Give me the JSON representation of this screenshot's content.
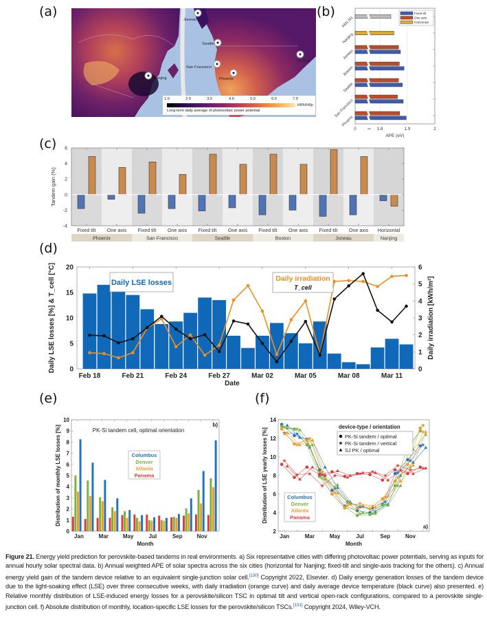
{
  "panels": {
    "a": "(a)",
    "b": "(b)",
    "c": "(c)",
    "d": "(d)",
    "e": "(e)",
    "f": "(f)"
  },
  "map": {
    "cities": [
      {
        "name": "Juneau",
        "region": "north-america"
      },
      {
        "name": "Seattle",
        "region": "north-america"
      },
      {
        "name": "San Francisco",
        "region": "north-america"
      },
      {
        "name": "Phoenix",
        "region": "north-america"
      },
      {
        "name": "Boston",
        "region": "north-america"
      },
      {
        "name": "Nanjing",
        "region": "asia"
      }
    ],
    "colorbar": {
      "ticks": [
        "1.0",
        "2.0",
        "3.0",
        "4.0",
        "5.0",
        "6.0",
        "7.0"
      ],
      "unit": "kWh/kWp",
      "description": "Long-term daily average of photovoltaic power potential",
      "colors": [
        "#000004",
        "#2a0f5c",
        "#5c1a6e",
        "#8c2369",
        "#c53c55",
        "#ec6a3d",
        "#f9a64a",
        "#fce8a8"
      ]
    }
  },
  "chart_data": [
    {
      "id": "b",
      "type": "bar",
      "orientation": "horizontal",
      "title": "",
      "xlabel": "APE (eV)",
      "ylabel": "",
      "xticks": [
        "0",
        "1.8",
        "1.9",
        "2"
      ],
      "axis_break": true,
      "xlim_broken": [
        1.76,
        2.0
      ],
      "categories": [
        "AM1.5G",
        "Nanjing",
        "Juneau",
        "Boston",
        "Seattle",
        "San Francisco",
        "Phoenix"
      ],
      "series": [
        {
          "name": "Fixed tilt",
          "color": "#3b5bb5",
          "values": [
            null,
            null,
            1.875,
            1.888,
            1.882,
            1.885,
            1.896
          ]
        },
        {
          "name": "One axis",
          "color": "#c04a26",
          "values": [
            null,
            null,
            1.868,
            1.871,
            1.868,
            1.864,
            1.872
          ]
        },
        {
          "name": "Horizontal",
          "color": "#d9aa35",
          "values": [
            null,
            1.851,
            null,
            null,
            null,
            null,
            null
          ]
        },
        {
          "name": "AM1.5G",
          "color": "#bdbdbd",
          "values": [
            1.84,
            null,
            null,
            null,
            null,
            null,
            null
          ]
        }
      ],
      "legend": [
        "Fixed tilt",
        "One axis",
        "Horizontal"
      ],
      "legend_position": "top-right"
    },
    {
      "id": "c",
      "type": "bar",
      "title": "",
      "ylabel": "Tandem gain (%)",
      "ylim": [
        -4,
        6
      ],
      "yticks": [
        -4,
        -2,
        0,
        2,
        4,
        6
      ],
      "groups": [
        {
          "city": "Phoenix",
          "orientations": [
            "Fixed tilt",
            "One axis"
          ]
        },
        {
          "city": "San Francisco",
          "orientations": [
            "Fixed tilt",
            "One axis"
          ]
        },
        {
          "city": "Seattle",
          "orientations": [
            "Fixed tilt",
            "One axis"
          ]
        },
        {
          "city": "Boston",
          "orientations": [
            "Fixed tilt",
            "One axis"
          ]
        },
        {
          "city": "Juneau",
          "orientations": [
            "Fixed tilt",
            "One axis"
          ]
        },
        {
          "city": "Nanjing",
          "orientations": [
            "Horizontal"
          ]
        }
      ],
      "categories": [
        "Fixed tilt",
        "One axis",
        "Fixed tilt",
        "One axis",
        "Fixed tilt",
        "One axis",
        "Fixed tilt",
        "One axis",
        "Fixed tilt",
        "One axis",
        "Horizontal"
      ],
      "series": [
        {
          "name": "blue",
          "color": "#4f73b3",
          "values": [
            -1.8,
            -0.6,
            -2.4,
            -1.8,
            -2.1,
            -1.7,
            -2.6,
            -2.0,
            -2.8,
            -2.6,
            -0.8
          ]
        },
        {
          "name": "orange",
          "color": "#c98a50",
          "values": [
            4.9,
            3.5,
            4.2,
            2.6,
            5.2,
            3.9,
            5.2,
            3.9,
            5.8,
            4.9,
            -1.5
          ]
        }
      ]
    },
    {
      "id": "d",
      "type": "bar+line",
      "xlabel": "Date",
      "ylabel_left": "Daily LSE losses [%] & T_cell [°C]",
      "ylabel_right": "Daily irradiation [kWh/m²]",
      "ylim_left": [
        0,
        20
      ],
      "ylim_right": [
        0,
        6
      ],
      "yticks_left": [
        0,
        5,
        10,
        15,
        20
      ],
      "yticks_right": [
        0,
        1,
        2,
        3,
        4,
        5,
        6
      ],
      "xtick_labels": [
        "Feb 18",
        "Feb 21",
        "Feb 24",
        "Feb 27",
        "Mar 02",
        "Mar 05",
        "Mar 08",
        "Mar 11"
      ],
      "xtick_indices": [
        0,
        3,
        6,
        9,
        12,
        15,
        18,
        21
      ],
      "days": [
        "Feb 18",
        "Feb 19",
        "Feb 20",
        "Feb 21",
        "Feb 22",
        "Feb 23",
        "Feb 24",
        "Feb 25",
        "Feb 26",
        "Feb 27",
        "Feb 28",
        "Mar 01",
        "Mar 02",
        "Mar 03",
        "Mar 04",
        "Mar 05",
        "Mar 06",
        "Mar 07",
        "Mar 08",
        "Mar 09",
        "Mar 10",
        "Mar 11",
        "Mar 12"
      ],
      "series": [
        {
          "name": "Daily LSE losses",
          "type": "bar",
          "axis": "left",
          "color": "#1068b8",
          "values": [
            14.8,
            16.5,
            16.6,
            14.5,
            11.7,
            8.8,
            9.3,
            11.0,
            14.0,
            13.5,
            6.5,
            4.1,
            6.5,
            9.0,
            7.0,
            5.0,
            9.3,
            3.0,
            1.3,
            0.9,
            4.2,
            5.9,
            4.8
          ]
        },
        {
          "name": "Daily irradiation",
          "type": "line",
          "axis": "right",
          "color": "#ef8e1f",
          "values": [
            0.95,
            0.9,
            0.65,
            0.95,
            2.4,
            2.95,
            1.3,
            2.0,
            0.8,
            1.4,
            4.05,
            4.9,
            3.4,
            0.85,
            2.9,
            4.0,
            0.85,
            5.15,
            5.2,
            5.15,
            4.85,
            5.45,
            5.5
          ]
        },
        {
          "name": "T_cell",
          "type": "line",
          "axis": "left",
          "color": "#111111",
          "values": [
            6.6,
            6.5,
            5.1,
            5.9,
            8.1,
            10.3,
            7.8,
            5.9,
            6.7,
            3.4,
            9.4,
            8.8,
            5.0,
            1.4,
            5.4,
            9.3,
            2.7,
            13.7,
            16.3,
            18.7,
            11.5,
            9.2,
            12.3
          ]
        }
      ],
      "legends": [
        {
          "text": "Daily LSE losses",
          "color": "#1068b8",
          "position": "top-left"
        },
        {
          "text": "Daily irradiation",
          "color": "#ef8e1f",
          "position": "top-center"
        },
        {
          "text": "T_cell",
          "color": "#111111",
          "position": "top-center"
        }
      ]
    },
    {
      "id": "e",
      "type": "bar",
      "title": "PK-Si tandem cell, optimal orientation",
      "corner_label": "b)",
      "xlabel": "Month",
      "ylabel": "Distribution of monthly LSE losses [%]",
      "ylim": [
        0,
        10
      ],
      "yticks": [
        0,
        1,
        2,
        3,
        4,
        5,
        6,
        7,
        8,
        9,
        10
      ],
      "categories": [
        "Jan",
        "Feb",
        "Mar",
        "Apr",
        "May",
        "Jun",
        "Jul",
        "Aug",
        "Sep",
        "Oct",
        "Nov",
        "Dec"
      ],
      "xtick_labels": [
        "Jan",
        "Mar",
        "May",
        "Jul",
        "Sep",
        "Nov"
      ],
      "series": [
        {
          "name": "Panama",
          "color": "#e03b3b",
          "values": [
            1.3,
            1.1,
            1.2,
            1.2,
            1.45,
            1.5,
            1.5,
            1.4,
            1.25,
            1.4,
            1.5,
            1.45
          ]
        },
        {
          "name": "Denver",
          "color": "#79b33d",
          "values": [
            5.0,
            4.55,
            3.05,
            2.15,
            1.8,
            1.2,
            1.0,
            1.0,
            1.3,
            2.05,
            3.7,
            4.75
          ]
        },
        {
          "name": "Atlanta",
          "color": "#f29b26",
          "values": [
            3.55,
            3.15,
            2.7,
            1.8,
            1.2,
            0.9,
            0.95,
            0.95,
            1.2,
            1.6,
            2.5,
            3.95
          ]
        },
        {
          "name": "Columbus",
          "color": "#1f73c0",
          "values": [
            8.25,
            6.15,
            4.6,
            2.95,
            1.9,
            1.45,
            1.25,
            1.2,
            1.55,
            2.95,
            5.4,
            8.15
          ]
        }
      ],
      "legend_order": [
        "Columbus",
        "Denver",
        "Atlanta",
        "Panama"
      ],
      "legend_position": "center"
    },
    {
      "id": "f",
      "type": "line",
      "corner_label": "a)",
      "xlabel": "Month",
      "ylabel": "Distribution of LSE yearly losses [%]",
      "ylim": [
        2,
        14
      ],
      "yticks": [
        2,
        4,
        6,
        8,
        10,
        12,
        14
      ],
      "categories": [
        "Jan",
        "Feb",
        "Mar",
        "Apr",
        "May",
        "Jun",
        "Jul",
        "Aug",
        "Sep",
        "Oct",
        "Nov",
        "Dec"
      ],
      "xtick_labels": [
        "Jan",
        "Mar",
        "May",
        "Jul",
        "Sep",
        "Nov"
      ],
      "legend_title": "device-type / orientation",
      "device_legend": [
        {
          "marker": "circle",
          "label": "PK-Si tandem / optimal"
        },
        {
          "marker": "star",
          "label": "PK-Si tandem / vertical"
        },
        {
          "marker": "triangle",
          "label": "SJ PK / optimal"
        }
      ],
      "city_legend": [
        {
          "name": "Columbus",
          "color": "#1f73c0"
        },
        {
          "name": "Denver",
          "color": "#79b33d"
        },
        {
          "name": "Atlanta",
          "color": "#f29b26"
        },
        {
          "name": "Panama",
          "color": "#e03b3b"
        }
      ],
      "series": [
        {
          "city": "Columbus",
          "marker": "circle",
          "color": "#1f73c0",
          "values": [
            13.5,
            12.3,
            11.9,
            8.6,
            6.4,
            4.7,
            4.2,
            4.0,
            4.9,
            8.2,
            9.7,
            11.2
          ]
        },
        {
          "city": "Columbus",
          "marker": "star",
          "color": "#1f73c0",
          "values": [
            12.6,
            12.5,
            11.0,
            8.1,
            6.6,
            5.2,
            4.6,
            4.5,
            5.2,
            8.3,
            9.6,
            11.3
          ]
        },
        {
          "city": "Columbus",
          "marker": "triangle",
          "color": "#1f73c0",
          "values": [
            13.4,
            12.1,
            11.8,
            8.9,
            6.7,
            5.0,
            4.7,
            4.1,
            4.9,
            8.0,
            9.4,
            11.0
          ]
        },
        {
          "city": "Denver",
          "marker": "circle",
          "color": "#79b33d",
          "values": [
            13.3,
            13.0,
            11.3,
            7.9,
            6.0,
            4.6,
            3.7,
            3.8,
            4.8,
            6.9,
            11.1,
            12.8
          ]
        },
        {
          "city": "Denver",
          "marker": "star",
          "color": "#79b33d",
          "values": [
            13.2,
            13.0,
            11.2,
            7.7,
            6.8,
            5.1,
            3.9,
            3.9,
            4.9,
            6.9,
            11.1,
            13.4
          ]
        },
        {
          "city": "Denver",
          "marker": "triangle",
          "color": "#79b33d",
          "values": [
            13.1,
            12.9,
            11.3,
            7.6,
            7.0,
            5.2,
            4.0,
            3.9,
            4.8,
            6.9,
            10.8,
            12.4
          ]
        },
        {
          "city": "Atlanta",
          "marker": "circle",
          "color": "#f29b26",
          "values": [
            13.0,
            11.4,
            11.8,
            8.2,
            6.0,
            4.5,
            4.5,
            4.4,
            5.5,
            7.4,
            9.2,
            13.1
          ]
        },
        {
          "city": "Atlanta",
          "marker": "star",
          "color": "#f29b26",
          "values": [
            12.5,
            11.3,
            12.0,
            8.4,
            6.2,
            4.8,
            5.0,
            4.7,
            5.7,
            7.8,
            8.9,
            12.7
          ]
        },
        {
          "city": "Atlanta",
          "marker": "triangle",
          "color": "#f29b26",
          "values": [
            12.6,
            11.3,
            11.8,
            8.1,
            6.1,
            4.9,
            4.8,
            4.6,
            5.8,
            7.4,
            9.1,
            12.7
          ]
        },
        {
          "city": "Panama",
          "marker": "circle",
          "color": "#e03b3b",
          "values": [
            9.2,
            7.8,
            8.9,
            8.1,
            8.4,
            7.9,
            8.2,
            8.1,
            7.5,
            8.6,
            8.2,
            8.9
          ]
        },
        {
          "city": "Panama",
          "marker": "star",
          "color": "#e03b3b",
          "values": [
            9.6,
            8.1,
            8.2,
            6.9,
            8.0,
            7.8,
            8.2,
            8.4,
            8.0,
            9.1,
            8.6,
            8.8
          ]
        },
        {
          "city": "Panama",
          "marker": "triangle",
          "color": "#e03b3b",
          "values": [
            9.0,
            7.6,
            8.9,
            8.0,
            8.5,
            8.0,
            8.3,
            8.3,
            7.5,
            8.6,
            8.2,
            8.8
          ]
        }
      ]
    }
  ],
  "caption": {
    "figure_label": "Figure 21.",
    "part1": " Energy yield prediction for perovskite-based tandems in real environments. a) Six representative cities with differing photovoltaic power potentials, serving as inputs for annual hourly solar spectral data. b) Annual weighted APE of solar spectra across the six cities (horizontal for Nanjing; fixed-tilt and single-axis tracking for the others). c) Annual energy yield gain of the tandem device relative to an equivalent single-junction solar cell.",
    "ref1": "[130]",
    "part2": " Copyright 2022, Elsevier. d) Daily energy generation losses of the tandem device due to the light-soaking effect (LSE) over three consecutive weeks, with daily irradiation (orange curve) and daily average device temperature (black curve) also presented. e) Relative monthly distribution of LSE-induced energy losses for a perovskite/silicon TSC in optimal tilt and vertical open-rack configurations, compared to a perovskite single-junction cell. f) Absolute distribution of monthly, location-specific LSE losses for the perovskite/silicon TSCs.",
    "ref2": "[131]",
    "part3": " Copyright 2024, Wiley-VCH."
  }
}
